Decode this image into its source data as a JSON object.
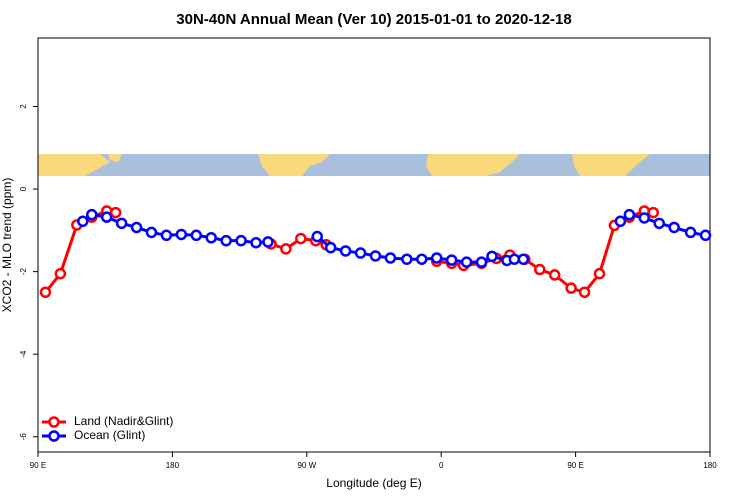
{
  "chart_data": {
    "type": "line",
    "title": "30N-40N Annual Mean (Ver 10)   2015-01-01 to 2020-12-18",
    "xlabel": "Longitude (deg E)",
    "ylabel": "XCO2 - MLO trend (ppm)",
    "xlim": [
      90,
      540
    ],
    "ylim": [
      -6.37,
      3.66
    ],
    "xticks": [
      {
        "value": 90,
        "label": "90 E"
      },
      180,
      {
        "value": 270,
        "label": "90 W"
      },
      {
        "value": 360,
        "label": "0"
      },
      {
        "value": 450,
        "label": "90 E"
      },
      {
        "value": 540,
        "label": "180"
      }
    ],
    "yticks": [
      2,
      0,
      -2,
      -4,
      -6
    ],
    "legend": "bottomleft",
    "series": [
      {
        "name": "Land (Nadir&Glint)",
        "color": "#ff0000",
        "x": [
          95,
          105,
          116,
          126,
          136,
          142,
          null,
          246,
          256,
          266,
          276,
          283,
          null,
          357,
          367,
          375,
          387,
          397,
          406,
          416,
          426,
          436,
          447,
          456,
          466,
          476,
          486,
          496,
          502
        ],
        "values": [
          -2.5,
          -2.05,
          -0.87,
          -0.68,
          -0.53,
          -0.57,
          null,
          -1.33,
          -1.45,
          -1.2,
          -1.25,
          -1.35,
          null,
          -1.75,
          -1.8,
          -1.85,
          -1.8,
          -1.68,
          -1.6,
          -1.7,
          -1.95,
          -2.08,
          -2.4,
          -2.5,
          -2.05,
          -0.88,
          -0.68,
          -0.53,
          -0.57
        ]
      },
      {
        "name": "Ocean (Glint)",
        "color": "#0000ff",
        "x": [
          120,
          126,
          136,
          146,
          156,
          166,
          176,
          186,
          196,
          206,
          216,
          226,
          236,
          244,
          null,
          277,
          286,
          296,
          306,
          316,
          326,
          337,
          347,
          357,
          367,
          377,
          387,
          394,
          404,
          409,
          415,
          null,
          480,
          486,
          496,
          506,
          516,
          527,
          537
        ],
        "values": [
          -0.78,
          -0.62,
          -0.68,
          -0.83,
          -0.93,
          -1.05,
          -1.12,
          -1.1,
          -1.12,
          -1.18,
          -1.25,
          -1.25,
          -1.3,
          -1.28,
          null,
          -1.15,
          -1.42,
          -1.5,
          -1.55,
          -1.62,
          -1.67,
          -1.7,
          -1.7,
          -1.67,
          -1.72,
          -1.77,
          -1.77,
          -1.63,
          -1.73,
          -1.7,
          -1.7,
          null,
          -0.78,
          -0.62,
          -0.7,
          -0.83,
          -0.93,
          -1.05,
          -1.12
        ]
      }
    ]
  }
}
